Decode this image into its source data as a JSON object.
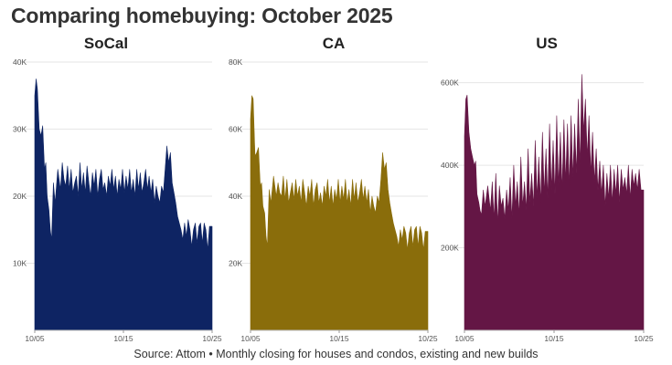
{
  "title": "Comparing homebuying: October 2025",
  "source": "Source: Attom • Monthly closing for houses and condos, existing and new builds",
  "chart_data": [
    {
      "type": "area",
      "title": "SoCal",
      "color": "#0e2463",
      "ylim": [
        0,
        40000
      ],
      "yticks": [
        {
          "value": 10000,
          "label": "10K"
        },
        {
          "value": 20000,
          "label": "20K"
        },
        {
          "value": 30000,
          "label": "30K"
        },
        {
          "value": 40000,
          "label": "40K"
        }
      ],
      "xticks": [
        {
          "x": 5,
          "label": "10/05"
        },
        {
          "x": 15,
          "label": "10/15"
        },
        {
          "x": 25,
          "label": "10/25"
        }
      ],
      "xlim": [
        5,
        25
      ],
      "x": [
        5.0,
        5.15,
        5.3,
        5.5,
        5.7,
        5.9,
        6.1,
        6.25,
        6.4,
        6.6,
        6.75,
        6.9,
        7.1,
        7.3,
        7.6,
        7.9,
        8.1,
        8.3,
        8.5,
        8.7,
        8.9,
        9.1,
        9.3,
        9.5,
        9.7,
        9.9,
        10.1,
        10.3,
        10.5,
        10.7,
        10.9,
        11.1,
        11.3,
        11.5,
        11.7,
        11.9,
        12.1,
        12.3,
        12.5,
        12.7,
        12.9,
        13.1,
        13.3,
        13.5,
        13.7,
        13.9,
        14.1,
        14.3,
        14.5,
        14.7,
        14.9,
        15.1,
        15.3,
        15.5,
        15.7,
        15.9,
        16.1,
        16.3,
        16.5,
        16.7,
        16.9,
        17.1,
        17.3,
        17.5,
        17.7,
        17.9,
        18.1,
        18.3,
        18.5,
        18.7,
        18.9,
        19.1,
        19.3,
        19.5,
        19.7,
        19.9,
        20.1,
        20.3,
        20.5,
        20.7,
        20.9,
        21.1,
        21.3,
        21.5,
        21.7,
        21.9,
        22.1,
        22.3,
        22.5,
        22.7,
        22.9,
        23.1,
        23.3,
        23.5,
        23.7,
        23.9,
        24.1,
        24.3,
        24.5,
        24.7,
        25.0
      ],
      "values": [
        35000,
        37500,
        36000,
        30000,
        29000,
        30500,
        24000,
        25000,
        20000,
        18000,
        15000,
        13500,
        22000,
        19000,
        24000,
        21000,
        25000,
        22500,
        21500,
        24500,
        21000,
        24000,
        20500,
        22000,
        23000,
        20000,
        25000,
        21000,
        23500,
        20500,
        24500,
        22000,
        20000,
        23500,
        21500,
        24000,
        20000,
        22500,
        24000,
        21000,
        22000,
        20000,
        23000,
        21500,
        24000,
        21000,
        23000,
        20000,
        22500,
        21000,
        24000,
        20500,
        23000,
        21000,
        24000,
        20500,
        22500,
        20000,
        24000,
        21000,
        23500,
        20500,
        22000,
        24000,
        21000,
        23000,
        20500,
        22500,
        19000,
        21500,
        20000,
        19000,
        21500,
        20500,
        24000,
        27500,
        25000,
        26500,
        22000,
        20500,
        19000,
        17000,
        16000,
        15000,
        13500,
        16000,
        14000,
        16500,
        15000,
        12500,
        15000,
        16000,
        13000,
        15500,
        16000,
        13000,
        16000,
        15000,
        12000,
        15500,
        15500
      ]
    },
    {
      "type": "area",
      "title": "CA",
      "color": "#8a6d0b",
      "ylim": [
        0,
        80000
      ],
      "yticks": [
        {
          "value": 20000,
          "label": "20K"
        },
        {
          "value": 40000,
          "label": "40K"
        },
        {
          "value": 60000,
          "label": "60K"
        },
        {
          "value": 80000,
          "label": "80K"
        }
      ],
      "xticks": [
        {
          "x": 5,
          "label": "10/05"
        },
        {
          "x": 15,
          "label": "10/15"
        },
        {
          "x": 25,
          "label": "10/25"
        }
      ],
      "xlim": [
        5,
        25
      ],
      "x": [
        5.0,
        5.15,
        5.3,
        5.5,
        5.7,
        5.9,
        6.1,
        6.25,
        6.4,
        6.6,
        6.75,
        6.9,
        7.1,
        7.3,
        7.6,
        7.9,
        8.1,
        8.3,
        8.5,
        8.7,
        8.9,
        9.1,
        9.3,
        9.5,
        9.7,
        9.9,
        10.1,
        10.3,
        10.5,
        10.7,
        10.9,
        11.1,
        11.3,
        11.5,
        11.7,
        11.9,
        12.1,
        12.3,
        12.5,
        12.7,
        12.9,
        13.1,
        13.3,
        13.5,
        13.7,
        13.9,
        14.1,
        14.3,
        14.5,
        14.7,
        14.9,
        15.1,
        15.3,
        15.5,
        15.7,
        15.9,
        16.1,
        16.3,
        16.5,
        16.7,
        16.9,
        17.1,
        17.3,
        17.5,
        17.7,
        17.9,
        18.1,
        18.3,
        18.5,
        18.7,
        18.9,
        19.1,
        19.3,
        19.5,
        19.7,
        19.9,
        20.1,
        20.3,
        20.5,
        20.7,
        20.9,
        21.1,
        21.3,
        21.5,
        21.7,
        21.9,
        22.1,
        22.3,
        22.5,
        22.7,
        22.9,
        23.1,
        23.3,
        23.5,
        23.7,
        23.9,
        24.1,
        24.3,
        24.5,
        24.7,
        25.0
      ],
      "values": [
        63000,
        70000,
        69000,
        52000,
        53000,
        54500,
        43000,
        44000,
        37000,
        35000,
        28000,
        25000,
        42000,
        38000,
        46000,
        40000,
        44000,
        41000,
        40000,
        46000,
        39000,
        45000,
        38000,
        41000,
        44000,
        39000,
        45000,
        40000,
        43000,
        38000,
        45000,
        41000,
        37000,
        43000,
        40000,
        45000,
        37000,
        42000,
        44000,
        38000,
        41000,
        37000,
        43000,
        40000,
        45000,
        38000,
        43000,
        37000,
        42000,
        39000,
        45000,
        38000,
        43000,
        39000,
        45000,
        38000,
        42000,
        37000,
        45000,
        39000,
        44000,
        38000,
        41000,
        45000,
        39000,
        43000,
        38000,
        42000,
        35000,
        40000,
        37000,
        35000,
        40000,
        38000,
        45000,
        53000,
        48000,
        50000,
        42000,
        38000,
        35000,
        32000,
        30000,
        28000,
        25000,
        30000,
        27000,
        31000,
        29000,
        24000,
        29000,
        31000,
        25000,
        30000,
        31000,
        25000,
        31000,
        29000,
        24000,
        29500,
        29500
      ]
    },
    {
      "type": "area",
      "title": "US",
      "color": "#641645",
      "ylim": [
        0,
        650000
      ],
      "yticks": [
        {
          "value": 200000,
          "label": "200K"
        },
        {
          "value": 400000,
          "label": "400K"
        },
        {
          "value": 600000,
          "label": "600K"
        }
      ],
      "xticks": [
        {
          "x": 5,
          "label": "10/05"
        },
        {
          "x": 15,
          "label": "10/15"
        },
        {
          "x": 25,
          "label": "10/25"
        }
      ],
      "xlim": [
        5,
        25
      ],
      "x": [
        5.0,
        5.15,
        5.3,
        5.5,
        5.7,
        5.9,
        6.1,
        6.25,
        6.4,
        6.6,
        6.75,
        6.9,
        7.1,
        7.3,
        7.6,
        7.9,
        8.1,
        8.3,
        8.5,
        8.7,
        8.9,
        9.1,
        9.3,
        9.5,
        9.7,
        9.9,
        10.1,
        10.3,
        10.5,
        10.7,
        10.9,
        11.1,
        11.3,
        11.5,
        11.7,
        11.9,
        12.1,
        12.3,
        12.5,
        12.7,
        12.9,
        13.1,
        13.3,
        13.5,
        13.7,
        13.9,
        14.1,
        14.3,
        14.5,
        14.7,
        14.9,
        15.1,
        15.3,
        15.5,
        15.7,
        15.9,
        16.1,
        16.3,
        16.5,
        16.7,
        16.9,
        17.1,
        17.3,
        17.5,
        17.7,
        17.9,
        18.1,
        18.3,
        18.5,
        18.7,
        18.9,
        19.1,
        19.3,
        19.5,
        19.7,
        19.9,
        20.1,
        20.3,
        20.5,
        20.7,
        20.9,
        21.1,
        21.3,
        21.5,
        21.7,
        21.9,
        22.1,
        22.3,
        22.5,
        22.7,
        22.9,
        23.1,
        23.3,
        23.5,
        23.7,
        23.9,
        24.1,
        24.3,
        24.5,
        24.7,
        25.0
      ],
      "values": [
        470000,
        560000,
        570000,
        480000,
        440000,
        420000,
        400000,
        410000,
        330000,
        310000,
        290000,
        280000,
        340000,
        300000,
        350000,
        290000,
        360000,
        270000,
        380000,
        260000,
        350000,
        300000,
        320000,
        270000,
        340000,
        290000,
        370000,
        270000,
        400000,
        300000,
        360000,
        280000,
        420000,
        300000,
        360000,
        290000,
        440000,
        310000,
        380000,
        300000,
        460000,
        320000,
        420000,
        310000,
        480000,
        330000,
        440000,
        320000,
        500000,
        340000,
        460000,
        330000,
        520000,
        350000,
        480000,
        340000,
        510000,
        360000,
        500000,
        350000,
        520000,
        370000,
        500000,
        380000,
        560000,
        400000,
        620000,
        480000,
        560000,
        420000,
        520000,
        380000,
        480000,
        360000,
        440000,
        340000,
        410000,
        330000,
        400000,
        300000,
        380000,
        320000,
        400000,
        310000,
        390000,
        330000,
        400000,
        310000,
        390000,
        340000,
        370000,
        330000,
        400000,
        320000,
        390000,
        350000,
        380000,
        340000,
        390000,
        340000,
        340000
      ]
    }
  ]
}
